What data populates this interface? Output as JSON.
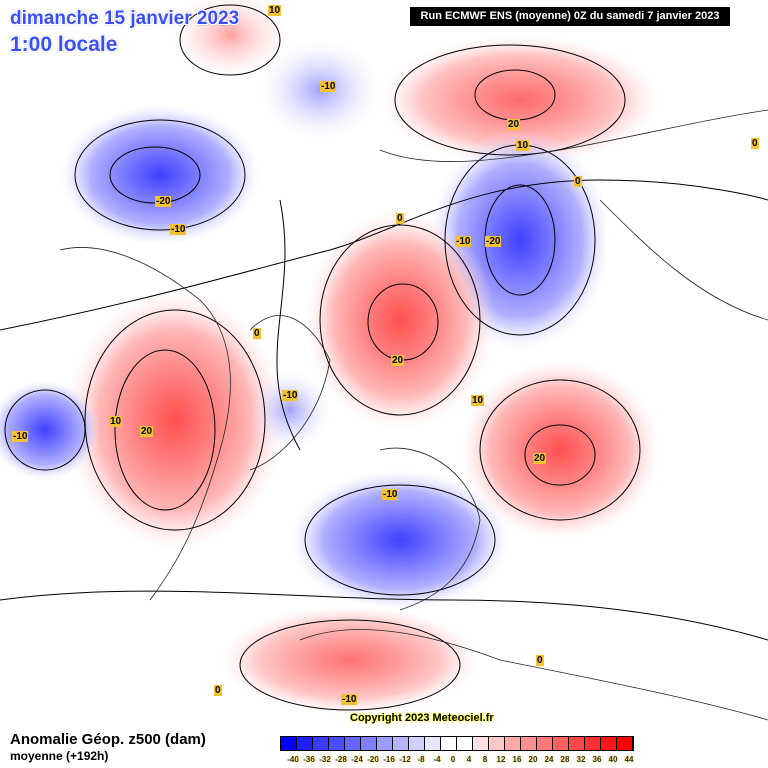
{
  "header": {
    "date": "dimanche 15 janvier 2023",
    "time": "1:00 locale",
    "run": "Run ECMWF ENS (moyenne) 0Z du samedi 7 janvier 2023"
  },
  "legend": {
    "title": "Anomalie Géop. z500 (dam)",
    "subtitle": "moyenne  (+192h)",
    "labels": [
      "-40",
      "-36",
      "-32",
      "-28",
      "-24",
      "-20",
      "-16",
      "-12",
      "-8",
      "-4",
      "0",
      "4",
      "8",
      "12",
      "16",
      "20",
      "24",
      "28",
      "32",
      "36",
      "40",
      "44"
    ],
    "colors": [
      "#0000ff",
      "#1e1eff",
      "#3a3aff",
      "#4c4cff",
      "#6464ff",
      "#8080ff",
      "#9c9cff",
      "#b4b4ff",
      "#d0d0ff",
      "#e6e6ff",
      "#ffffff",
      "#ffffff",
      "#ffe0e0",
      "#ffc8c8",
      "#ffa8a8",
      "#ff9090",
      "#ff7878",
      "#ff6060",
      "#ff4848",
      "#ff3030",
      "#ff1818",
      "#ff0000"
    ]
  },
  "copyright": "Copyright 2023 Meteociel.fr",
  "contour_labels": [
    "10",
    "-10",
    "20",
    "10",
    "0",
    "0",
    "-20",
    "-10",
    "-10",
    "-20",
    "0",
    "0",
    "20",
    "-10",
    "10",
    "10",
    "20",
    "-10",
    "20",
    "-10",
    "0",
    "0",
    "-10"
  ]
}
